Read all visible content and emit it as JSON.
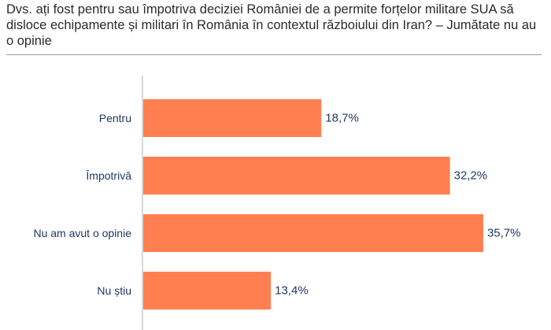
{
  "header": {
    "title": "Dvs. ați fost pentru sau împotriva deciziei României de a permite forțelor militare SUA să disloce echipamente și militari în România în contextul războiului din Iran? – Jumătate nu au o opinie"
  },
  "colors": {
    "bar": "#FF7F50",
    "text": "#1F3864",
    "axis": "#B0B0B0"
  },
  "chart_data": {
    "type": "bar",
    "orientation": "horizontal",
    "title": "Dvs. ați fost pentru sau împotriva deciziei României de a permite forțelor militare SUA să disloce echipamente și militari în România în contextul războiului din Iran? – Jumătate nu au o opinie",
    "categories": [
      "Pentru",
      "Împotrivă",
      "Nu am avut o opinie",
      "Nu știu"
    ],
    "values": [
      18.7,
      32.2,
      35.7,
      13.4
    ],
    "value_labels": [
      "18,7%",
      "32,2%",
      "35,7%",
      "13,4%"
    ],
    "xlim": [
      0,
      100
    ],
    "xlabel": "",
    "ylabel": "",
    "grid": false,
    "legend": "none"
  }
}
